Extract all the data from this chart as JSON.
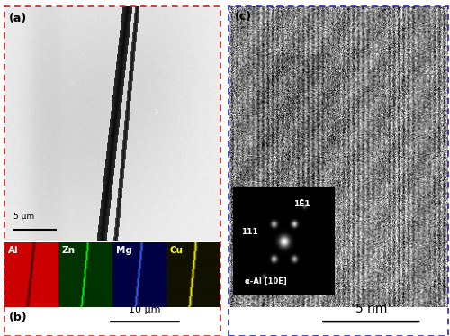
{
  "fig_width": 5.0,
  "fig_height": 3.73,
  "dpi": 100,
  "bg_color": "#ffffff",
  "border_red": "#cc2222",
  "border_blue": "#2222cc",
  "panel_a_label": "(a)",
  "panel_b_label": "(b)",
  "panel_c_label": "(c)",
  "scalebar_a_text": "5 μm",
  "scalebar_b_text": "10 μm",
  "scalebar_c_text": "5 nm",
  "eds_labels": [
    "Al",
    "Zn",
    "Mg",
    "Cu"
  ],
  "eds_bg_colors": [
    "#cc0000",
    "#003300",
    "#000044",
    "#111100"
  ],
  "eds_line_colors": [
    "#000000",
    "#00ee00",
    "#3355ff",
    "#dddd00"
  ],
  "eds_label_colors": [
    "#ffffff",
    "#ffffff",
    "#ffffff",
    "#ffff00"
  ],
  "inset_label1": "1Ē1",
  "inset_label2": "111",
  "inset_label3": "α-Al [10Ē]",
  "noise_seed": 42
}
